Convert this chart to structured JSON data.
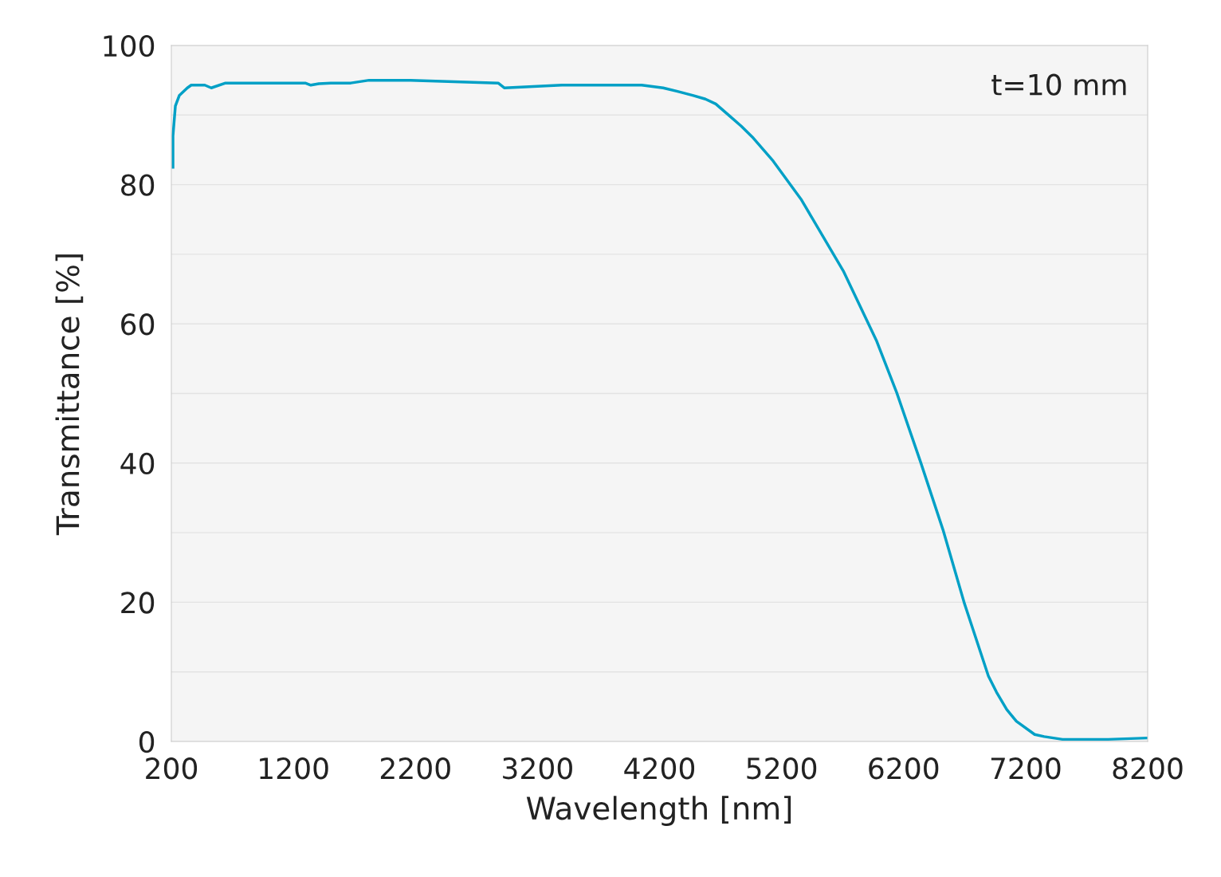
{
  "chart_data": {
    "type": "line",
    "xlabel": "Wavelength [nm]",
    "ylabel": "Transmittance [%]",
    "annotations": [
      "t=10 mm"
    ],
    "x": [
      213,
      213,
      233,
      265,
      331,
      363,
      474,
      527,
      644,
      1297,
      1343,
      1408,
      1506,
      1670,
      1820,
      2160,
      2878,
      2930,
      3400,
      4054,
      4230,
      4348,
      4478,
      4576,
      4661,
      4772,
      4870,
      4968,
      5131,
      5360,
      5706,
      5980,
      6144,
      6340,
      6523,
      6699,
      6895,
      6961,
      7045,
      7124,
      7274,
      7352,
      7502,
      7875,
      8200
    ],
    "series": [
      {
        "color": "#00a0c6",
        "values": [
          82.5,
          87,
          91.3,
          92.8,
          93.9,
          94.3,
          94.3,
          93.9,
          94.6,
          94.6,
          94.3,
          94.5,
          94.6,
          94.6,
          95.0,
          95.0,
          94.6,
          93.9,
          94.3,
          94.3,
          93.9,
          93.4,
          92.8,
          92.3,
          91.6,
          89.9,
          88.4,
          86.7,
          83.4,
          77.9,
          67.6,
          57.5,
          50.1,
          40.1,
          30.4,
          19.8,
          9.4,
          7.1,
          4.6,
          2.9,
          1.0,
          0.7,
          0.3,
          0.3,
          0.5
        ]
      }
    ],
    "xlim": [
      200,
      8200
    ],
    "xticks": [
      200,
      1200,
      2200,
      3200,
      4200,
      5200,
      6200,
      7200,
      8200
    ],
    "ylim": [
      0,
      100
    ],
    "yticks": [
      0,
      {
        "value": 10,
        "label": null
      },
      20,
      {
        "value": 30,
        "label": null
      },
      40,
      {
        "value": 50,
        "label": null
      },
      60,
      {
        "value": 70,
        "label": null
      },
      80,
      {
        "value": 90,
        "label": null
      },
      100
    ],
    "grid": "y",
    "legend": false,
    "marker": "none",
    "line_style": "solid"
  }
}
